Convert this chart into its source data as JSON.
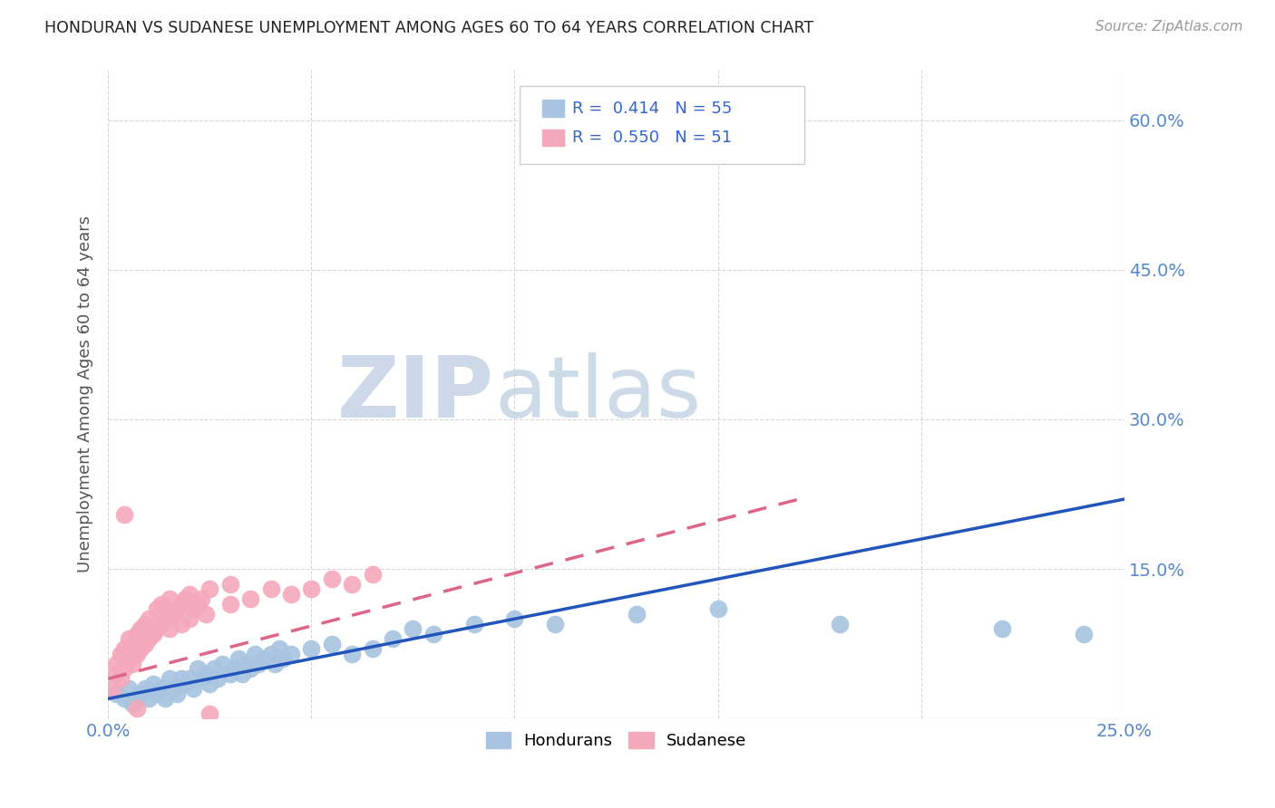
{
  "title": "HONDURAN VS SUDANESE UNEMPLOYMENT AMONG AGES 60 TO 64 YEARS CORRELATION CHART",
  "source": "Source: ZipAtlas.com",
  "ylabel": "Unemployment Among Ages 60 to 64 years",
  "xlim": [
    0.0,
    0.25
  ],
  "ylim": [
    0.0,
    0.65
  ],
  "honduran_R": "0.414",
  "honduran_N": "55",
  "sudanese_R": "0.550",
  "sudanese_N": "51",
  "honduran_color": "#a8c4e0",
  "sudanese_color": "#f4a8bb",
  "honduran_line_color": "#2255bb",
  "sudanese_line_color": "#dd6688",
  "legend_text_color": "#3366cc",
  "right_axis_color": "#5588cc",
  "watermark_color": "#cdd8e8",
  "honduran_line": [
    0.0,
    0.02,
    0.25,
    0.22
  ],
  "sudanese_line": [
    0.0,
    0.04,
    0.17,
    0.22
  ],
  "honduran_scatter": [
    [
      0.002,
      0.025
    ],
    [
      0.004,
      0.02
    ],
    [
      0.005,
      0.03
    ],
    [
      0.006,
      0.015
    ],
    [
      0.007,
      0.02
    ],
    [
      0.008,
      0.025
    ],
    [
      0.009,
      0.03
    ],
    [
      0.01,
      0.02
    ],
    [
      0.011,
      0.035
    ],
    [
      0.012,
      0.025
    ],
    [
      0.013,
      0.03
    ],
    [
      0.014,
      0.02
    ],
    [
      0.015,
      0.04
    ],
    [
      0.016,
      0.03
    ],
    [
      0.017,
      0.025
    ],
    [
      0.018,
      0.04
    ],
    [
      0.019,
      0.035
    ],
    [
      0.02,
      0.04
    ],
    [
      0.021,
      0.03
    ],
    [
      0.022,
      0.05
    ],
    [
      0.023,
      0.04
    ],
    [
      0.024,
      0.045
    ],
    [
      0.025,
      0.035
    ],
    [
      0.026,
      0.05
    ],
    [
      0.027,
      0.04
    ],
    [
      0.028,
      0.055
    ],
    [
      0.03,
      0.045
    ],
    [
      0.031,
      0.05
    ],
    [
      0.032,
      0.06
    ],
    [
      0.033,
      0.045
    ],
    [
      0.034,
      0.055
    ],
    [
      0.035,
      0.05
    ],
    [
      0.036,
      0.065
    ],
    [
      0.037,
      0.055
    ],
    [
      0.038,
      0.06
    ],
    [
      0.04,
      0.065
    ],
    [
      0.041,
      0.055
    ],
    [
      0.042,
      0.07
    ],
    [
      0.043,
      0.06
    ],
    [
      0.045,
      0.065
    ],
    [
      0.05,
      0.07
    ],
    [
      0.055,
      0.075
    ],
    [
      0.06,
      0.065
    ],
    [
      0.065,
      0.07
    ],
    [
      0.07,
      0.08
    ],
    [
      0.075,
      0.09
    ],
    [
      0.08,
      0.085
    ],
    [
      0.09,
      0.095
    ],
    [
      0.1,
      0.1
    ],
    [
      0.11,
      0.095
    ],
    [
      0.13,
      0.105
    ],
    [
      0.15,
      0.11
    ],
    [
      0.18,
      0.095
    ],
    [
      0.22,
      0.09
    ],
    [
      0.24,
      0.085
    ]
  ],
  "sudanese_scatter": [
    [
      0.001,
      0.03
    ],
    [
      0.002,
      0.045
    ],
    [
      0.002,
      0.055
    ],
    [
      0.003,
      0.04
    ],
    [
      0.003,
      0.065
    ],
    [
      0.004,
      0.05
    ],
    [
      0.004,
      0.07
    ],
    [
      0.005,
      0.06
    ],
    [
      0.005,
      0.08
    ],
    [
      0.006,
      0.055
    ],
    [
      0.006,
      0.075
    ],
    [
      0.007,
      0.065
    ],
    [
      0.007,
      0.085
    ],
    [
      0.008,
      0.07
    ],
    [
      0.008,
      0.09
    ],
    [
      0.009,
      0.075
    ],
    [
      0.009,
      0.095
    ],
    [
      0.01,
      0.08
    ],
    [
      0.01,
      0.1
    ],
    [
      0.011,
      0.085
    ],
    [
      0.012,
      0.09
    ],
    [
      0.012,
      0.11
    ],
    [
      0.013,
      0.095
    ],
    [
      0.013,
      0.115
    ],
    [
      0.014,
      0.1
    ],
    [
      0.015,
      0.09
    ],
    [
      0.015,
      0.12
    ],
    [
      0.016,
      0.105
    ],
    [
      0.017,
      0.11
    ],
    [
      0.018,
      0.095
    ],
    [
      0.018,
      0.115
    ],
    [
      0.019,
      0.12
    ],
    [
      0.02,
      0.1
    ],
    [
      0.02,
      0.125
    ],
    [
      0.021,
      0.11
    ],
    [
      0.022,
      0.115
    ],
    [
      0.023,
      0.12
    ],
    [
      0.024,
      0.105
    ],
    [
      0.025,
      0.13
    ],
    [
      0.03,
      0.115
    ],
    [
      0.03,
      0.135
    ],
    [
      0.035,
      0.12
    ],
    [
      0.04,
      0.13
    ],
    [
      0.045,
      0.125
    ],
    [
      0.05,
      0.13
    ],
    [
      0.055,
      0.14
    ],
    [
      0.06,
      0.135
    ],
    [
      0.065,
      0.145
    ],
    [
      0.004,
      0.205
    ],
    [
      0.007,
      0.01
    ],
    [
      0.025,
      0.005
    ]
  ]
}
